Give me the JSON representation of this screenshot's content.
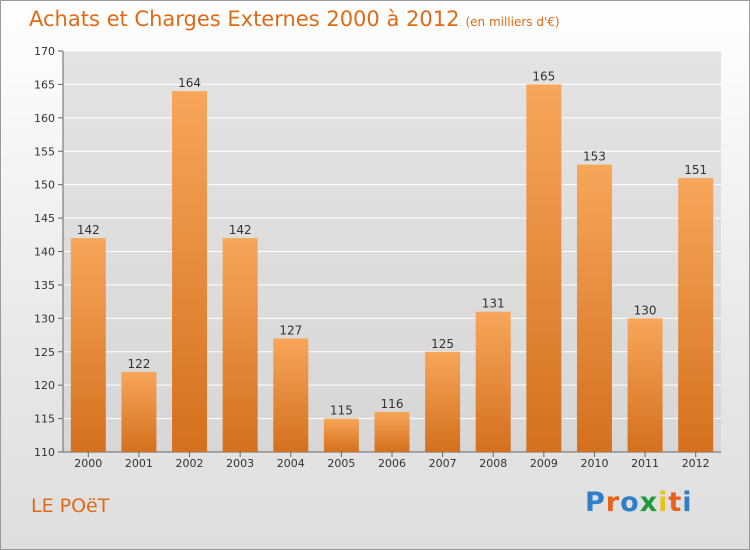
{
  "title": "Achats et Charges Externes 2000 à 2012",
  "subtitle": "(en milliers d'€)",
  "place": "LE POëT",
  "logo": "Proxiti",
  "colors": {
    "accent": "#e06a16",
    "bar_top": "#f7a65a",
    "bar_bottom": "#d4701d",
    "logo_letters": [
      "#2f7fc8",
      "#e8621a",
      "#2f7fc8",
      "#1f9a3a",
      "#e8c41a",
      "#e8621a",
      "#2f7fc8"
    ]
  },
  "chart_data": {
    "type": "bar",
    "categories": [
      "2000",
      "2001",
      "2002",
      "2003",
      "2004",
      "2005",
      "2006",
      "2007",
      "2008",
      "2009",
      "2010",
      "2011",
      "2012"
    ],
    "values": [
      142,
      122,
      164,
      142,
      127,
      115,
      116,
      125,
      131,
      165,
      153,
      130,
      151
    ],
    "ylim": [
      110,
      170
    ],
    "yticks": [
      110,
      115,
      120,
      125,
      130,
      135,
      140,
      145,
      150,
      155,
      160,
      165,
      170
    ],
    "grid": true,
    "legend": "none"
  }
}
